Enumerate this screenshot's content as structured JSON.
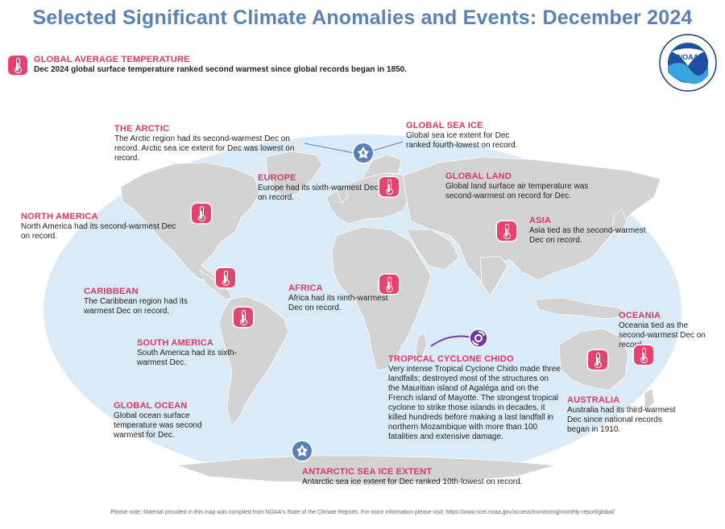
{
  "title": "Selected Significant Climate Anomalies and Events: December 2024",
  "colors": {
    "accent": "#d93a63",
    "ocean": "#daebf7",
    "land": "#d3d3d3",
    "title": "#5b82b4",
    "ice": "#5b7fb8"
  },
  "logo": {
    "name": "NOAA",
    "ring_text": "NATIONAL OCEANIC AND ATMOSPHERIC ADMINISTRATION",
    "bottom_text": "U.S. DEPARTMENT OF COMMERCE"
  },
  "events": {
    "global_temp": {
      "heading": "GLOBAL AVERAGE TEMPERATURE",
      "text": "Dec 2024 global surface temperature ranked second warmest since global records began in 1850."
    },
    "arctic": {
      "heading": "THE ARCTIC",
      "text": "The Arctic region had its second-warmest Dec on record. Arctic sea ice extent for Dec was lowest on record."
    },
    "global_sea_ice": {
      "heading": "GLOBAL SEA ICE",
      "text": "Global sea ice extent for Dec ranked fourth-lowest on record."
    },
    "europe": {
      "heading": "EUROPE",
      "text": "Europe had its sixth-warmest Dec on record."
    },
    "global_land": {
      "heading": "GLOBAL LAND",
      "text": "Global land surface air temperature was second-warmest on record for Dec."
    },
    "north_america": {
      "heading": "NORTH AMERICA",
      "text": "North America had its second-warmest Dec on record."
    },
    "asia": {
      "heading": "ASIA",
      "text": "Asia tied as the second-warmest Dec on record."
    },
    "caribbean": {
      "heading": "CARIBBEAN",
      "text": "The Caribbean region had its warmest Dec on record."
    },
    "africa": {
      "heading": "AFRICA",
      "text": "Africa had its ninth-warmest Dec on record."
    },
    "oceania": {
      "heading": "OCEANIA",
      "text": "Oceania tied as the second-warmest Dec on record."
    },
    "south_america": {
      "heading": "SOUTH AMERICA",
      "text": "South America had its sixth-warmest Dec."
    },
    "tropical_cyclone": {
      "heading": "TROPICAL CYCLONE CHIDO",
      "text": "Very intense Tropical Cyclone Chido made three landfalls; destroyed most of the structures on the Mauritian island of Agaléga and on the French island of Mayotte. The strongest tropical cyclone to strike those islands in decades, it killed hundreds before making a last landfall in northern Mozambique with more than 100 fatalities and extensive damage."
    },
    "australia": {
      "heading": "AUSTRALIA",
      "text": "Australia had its third-warmest Dec since national records began in 1910."
    },
    "global_ocean": {
      "heading": "GLOBAL OCEAN",
      "text": "Global ocean surface temperature was second warmest for Dec."
    },
    "antarctic": {
      "heading": "ANTARCTIC SEA ICE EXTENT",
      "text": "Antarctic sea ice extent for Dec ranked 10th-lowest on record."
    }
  },
  "footer": "Please note: Material provided in this map was compiled from NOAA's State of the Climate Reports. For more information please visit: https://www.ncei.noaa.gov/access/monitoring/monthly-report/global/"
}
